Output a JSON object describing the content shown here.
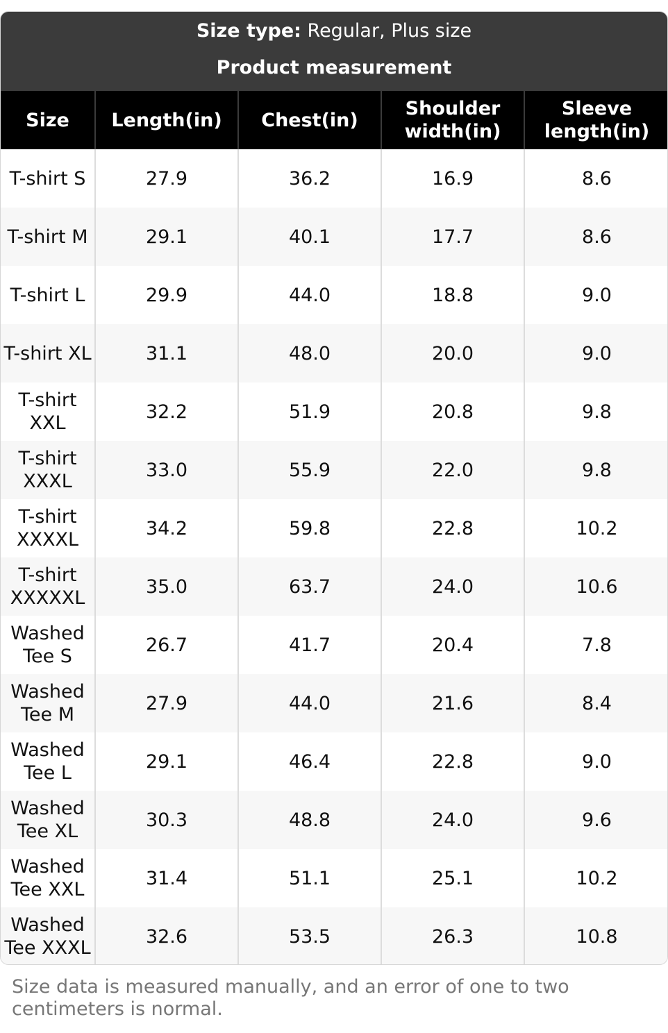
{
  "header": {
    "size_type_label": "Size type:",
    "size_type_value": " Regular, Plus size",
    "subtitle": "Product measurement"
  },
  "table": {
    "columns": [
      "Size",
      "Length(in)",
      "Chest(in)",
      "Shoulder width(in)",
      "Sleeve length(in)"
    ],
    "rows": [
      [
        "T-shirt S",
        "27.9",
        "36.2",
        "16.9",
        "8.6"
      ],
      [
        "T-shirt M",
        "29.1",
        "40.1",
        "17.7",
        "8.6"
      ],
      [
        "T-shirt L",
        "29.9",
        "44.0",
        "18.8",
        "9.0"
      ],
      [
        "T-shirt XL",
        "31.1",
        "48.0",
        "20.0",
        "9.0"
      ],
      [
        "T-shirt XXL",
        "32.2",
        "51.9",
        "20.8",
        "9.8"
      ],
      [
        "T-shirt XXXL",
        "33.0",
        "55.9",
        "22.0",
        "9.8"
      ],
      [
        "T-shirt XXXXL",
        "34.2",
        "59.8",
        "22.8",
        "10.2"
      ],
      [
        "T-shirt XXXXXL",
        "35.0",
        "63.7",
        "24.0",
        "10.6"
      ],
      [
        "Washed Tee S",
        "26.7",
        "41.7",
        "20.4",
        "7.8"
      ],
      [
        "Washed Tee M",
        "27.9",
        "44.0",
        "21.6",
        "8.4"
      ],
      [
        "Washed Tee L",
        "29.1",
        "46.4",
        "22.8",
        "9.0"
      ],
      [
        "Washed Tee XL",
        "30.3",
        "48.8",
        "24.0",
        "9.6"
      ],
      [
        "Washed Tee XXL",
        "31.4",
        "51.1",
        "25.1",
        "10.2"
      ],
      [
        "Washed Tee XXXL",
        "32.6",
        "53.5",
        "26.3",
        "10.8"
      ]
    ]
  },
  "footer": {
    "note": "Size data is measured manually, and an error of one to two centimeters is normal."
  },
  "colors": {
    "header_bg": "#3b3b3b",
    "column_header_bg": "#000000",
    "stripe_bg": "#f7f7f7",
    "note_text": "#777777"
  }
}
